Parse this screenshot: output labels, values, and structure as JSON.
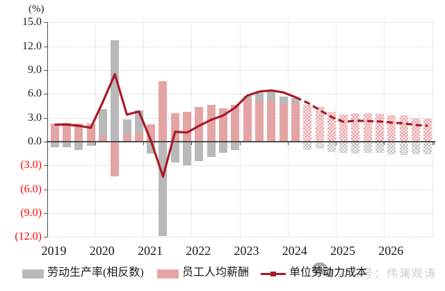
{
  "y_axis": {
    "unit_label": "(%)",
    "ticks": [
      "15.0",
      "12.0",
      "9.0",
      "6.0",
      "3.0",
      "0.0",
      "(3.0)",
      "(6.0)",
      "(9.0)",
      "(12.0)"
    ],
    "tick_values": [
      15,
      12,
      9,
      6,
      3,
      0,
      -3,
      -6,
      -9,
      -12
    ],
    "negative_label_color": "#ff0000"
  },
  "x_axis": {
    "years": [
      "2019",
      "2020",
      "2021",
      "2022",
      "2023",
      "2024",
      "2025",
      "2026"
    ]
  },
  "legend": {
    "items": [
      {
        "label": "劳动生产率(相反数)",
        "swatch": "gray-bar",
        "color": "#b9b9b9"
      },
      {
        "label": "员工人均薪酬",
        "swatch": "pink-bar",
        "color": "#e5a4a4"
      },
      {
        "label": "单位劳动力成本",
        "swatch": "dark-red-line",
        "color": "#a81a28"
      }
    ]
  },
  "watermark": {
    "icon": "wechat-icon",
    "text": "公众号：伟澜观涛"
  },
  "chart_data": {
    "type": "combo-bar-line",
    "x_quarters": [
      "2019Q1",
      "2019Q2",
      "2019Q3",
      "2019Q4",
      "2020Q1",
      "2020Q2",
      "2020Q3",
      "2020Q4",
      "2021Q1",
      "2021Q2",
      "2021Q3",
      "2021Q4",
      "2022Q1",
      "2022Q2",
      "2022Q3",
      "2022Q4",
      "2023Q1",
      "2023Q2",
      "2023Q3",
      "2023Q4",
      "2024Q1",
      "2024Q2",
      "2024Q3",
      "2024Q4",
      "2025Q1",
      "2025Q2",
      "2025Q3",
      "2025Q4",
      "2026Q1",
      "2026Q2",
      "2026Q3",
      "2026Q4"
    ],
    "series": [
      {
        "name": "劳动生产率(相反数)",
        "type": "bar",
        "color": "#b9b9b9",
        "values": [
          -0.6,
          -0.6,
          -1.0,
          -0.4,
          4.1,
          12.8,
          2.8,
          3.9,
          -1.4,
          -11.8,
          -2.5,
          -2.9,
          -2.4,
          -1.8,
          -1.3,
          -1.0,
          5.8,
          6.1,
          6.3,
          5.7,
          5.5,
          -1.0,
          -0.8,
          -1.2,
          -1.3,
          -1.4,
          -1.3,
          -1.3,
          -1.5,
          -1.6,
          -1.5,
          -1.5
        ]
      },
      {
        "name": "员工人均薪酬",
        "type": "bar",
        "color": "#e5a4a4",
        "values": [
          2.3,
          2.4,
          2.25,
          2.3,
          0.7,
          -4.3,
          1.0,
          1.1,
          2.15,
          7.6,
          3.6,
          3.8,
          4.4,
          4.6,
          4.2,
          4.6,
          5.3,
          5.2,
          5.2,
          4.7,
          4.9,
          4.6,
          4.4,
          3.8,
          3.4,
          3.6,
          3.55,
          3.5,
          3.35,
          3.3,
          2.95,
          2.9
        ]
      },
      {
        "name": "单位劳动力成本",
        "type": "line",
        "color": "#a81a28",
        "values": [
          2.15,
          2.15,
          2.0,
          1.75,
          5.0,
          8.5,
          3.4,
          3.8,
          0.1,
          -4.4,
          1.25,
          1.15,
          2.0,
          2.75,
          3.3,
          4.3,
          5.8,
          6.3,
          6.45,
          6.2,
          5.6,
          4.9,
          4.0,
          3.1,
          2.5,
          2.65,
          2.6,
          2.55,
          2.4,
          2.3,
          2.1,
          2.0
        ]
      }
    ],
    "forecast_start_index": 21,
    "forecast_style": {
      "bars": "hatched",
      "line": "dashed"
    },
    "ylim": [
      -12,
      15
    ],
    "grid": "dotted horizontal at every 3, dotted vertical at year boundaries",
    "legend_position": "bottom"
  }
}
